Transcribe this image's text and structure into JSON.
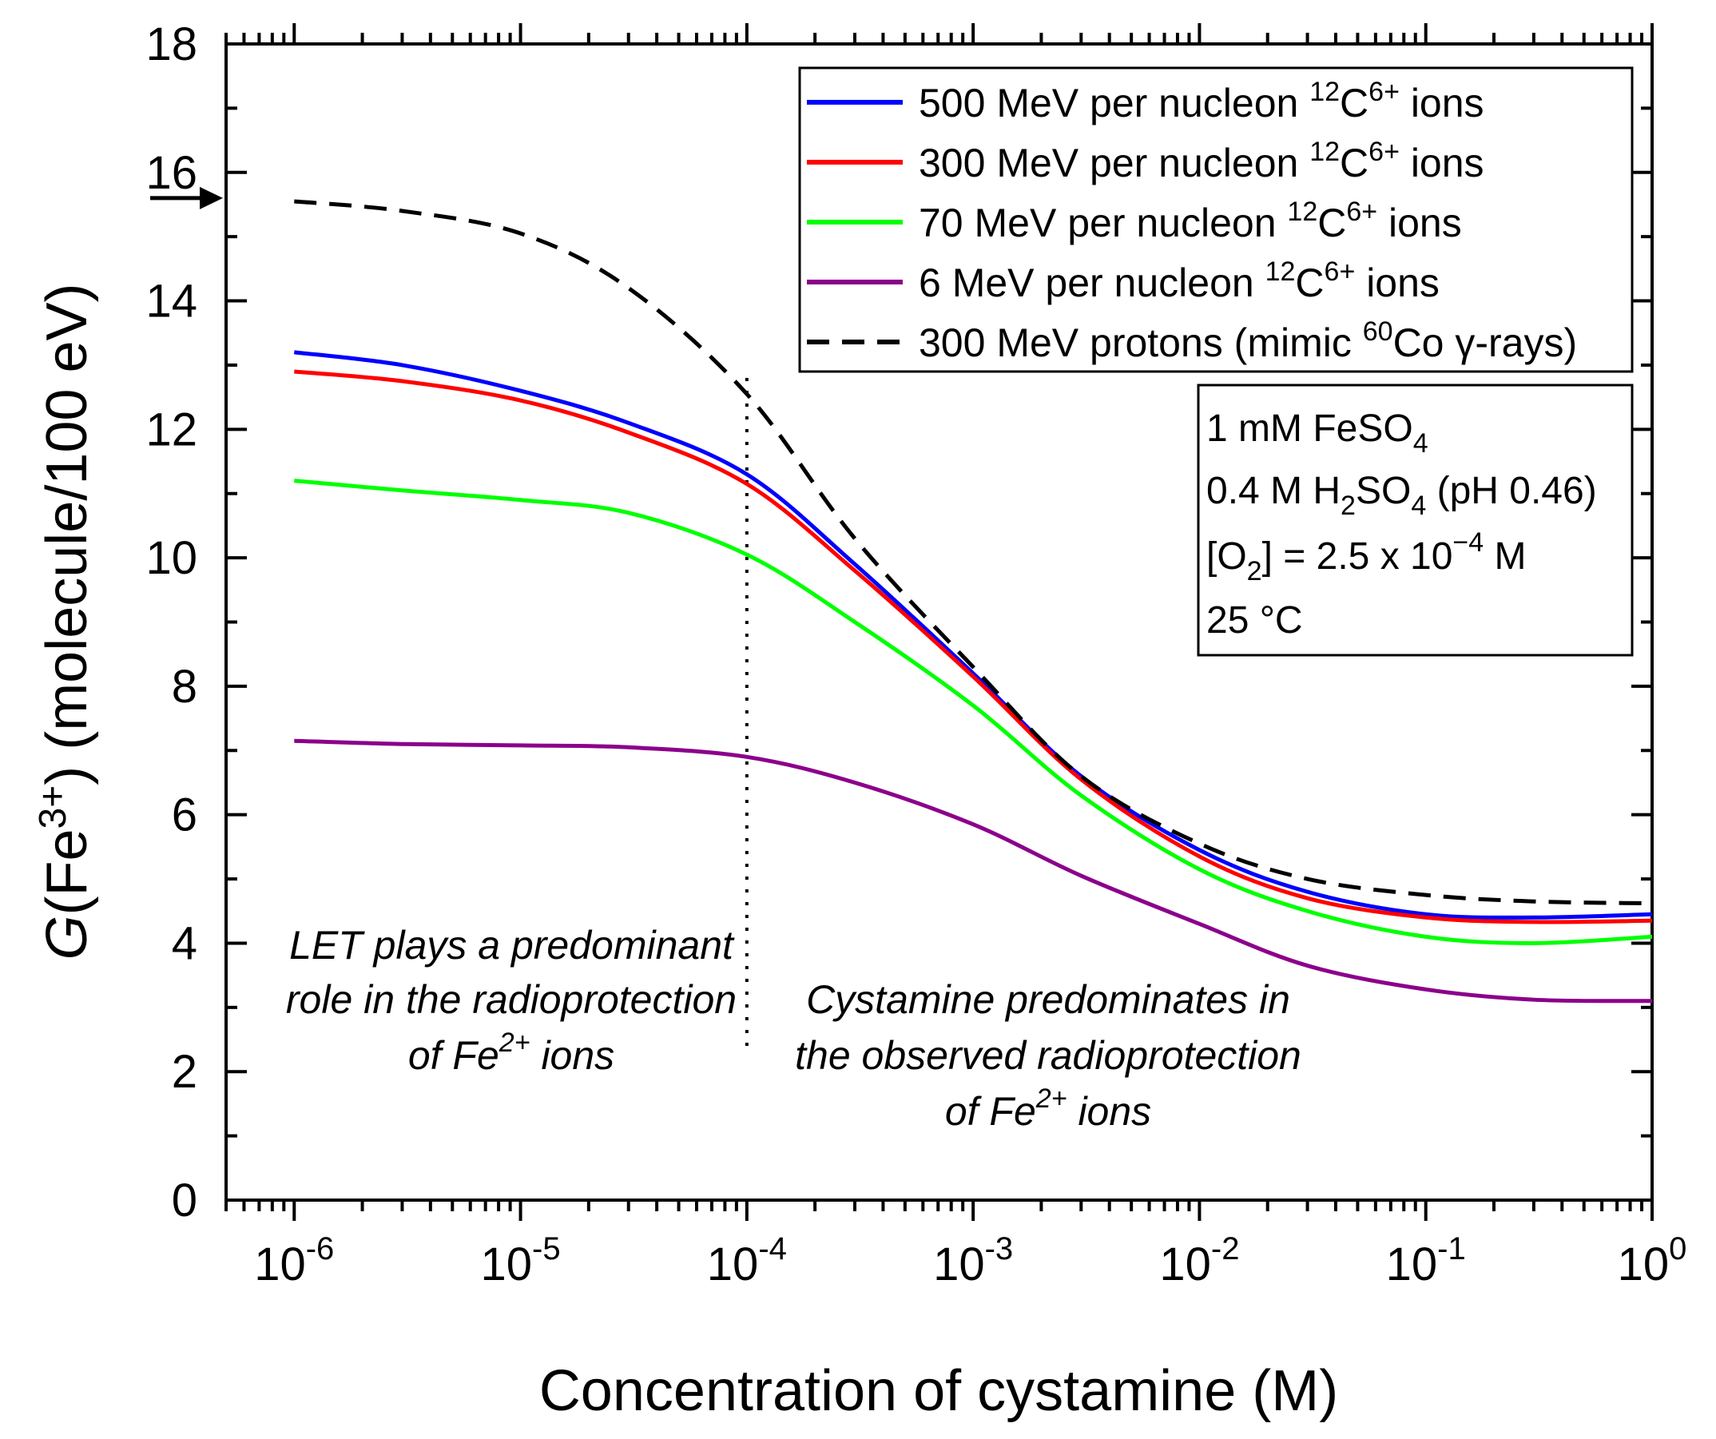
{
  "chart_data": {
    "type": "line",
    "xscale": "log",
    "xlabel": "Concentration of cystamine (M)",
    "ylabel": {
      "prefix": "G",
      "main": "(Fe",
      "sup": "3+",
      "suffix": ") (molecule/100 eV)"
    },
    "xlim": [
      5e-07,
      1
    ],
    "ylim": [
      0,
      18
    ],
    "yticks": [
      "0",
      "2",
      "4",
      "6",
      "8",
      "10",
      "12",
      "14",
      "16",
      "18"
    ],
    "xticks": [
      {
        "base": "10",
        "exp": "-6"
      },
      {
        "base": "10",
        "exp": "-5"
      },
      {
        "base": "10",
        "exp": "-4"
      },
      {
        "base": "10",
        "exp": "-3"
      },
      {
        "base": "10",
        "exp": "-2"
      },
      {
        "base": "10",
        "exp": "-1"
      },
      {
        "base": "10",
        "exp": "0"
      }
    ],
    "x": [
      1e-06,
      3e-06,
      1e-05,
      3e-05,
      0.0001,
      0.0003,
      0.001,
      0.003,
      0.01,
      0.03,
      0.1,
      0.3,
      1
    ],
    "series": [
      {
        "name": "500 MeV per nucleon 12C6+ ions",
        "label": {
          "pre": "500 MeV per nucleon ",
          "sup1": "12",
          "mid": "C",
          "sup2": "6+",
          "post": " ions"
        },
        "color": "#0000ff",
        "style": "solid",
        "values": [
          13.2,
          13.0,
          12.6,
          12.1,
          11.3,
          9.9,
          8.2,
          6.6,
          5.45,
          4.8,
          4.45,
          4.4,
          4.45
        ]
      },
      {
        "name": "300 MeV per nucleon 12C6+ ions",
        "label": {
          "pre": "300 MeV per nucleon ",
          "sup1": "12",
          "mid": "C",
          "sup2": "6+",
          "post": " ions"
        },
        "color": "#ff0000",
        "style": "solid",
        "values": [
          12.9,
          12.75,
          12.45,
          11.95,
          11.15,
          9.8,
          8.15,
          6.55,
          5.35,
          4.7,
          4.4,
          4.33,
          4.35
        ]
      },
      {
        "name": "70 MeV per nucleon 12C6+ ions",
        "label": {
          "pre": "70 MeV per nucleon ",
          "sup1": "12",
          "mid": "C",
          "sup2": "6+",
          "post": " ions"
        },
        "color": "#00ff00",
        "style": "solid",
        "values": [
          11.2,
          11.05,
          10.9,
          10.7,
          10.05,
          9.0,
          7.7,
          6.3,
          5.15,
          4.5,
          4.1,
          4.0,
          4.1
        ]
      },
      {
        "name": "6 MeV per nucleon 12C6+ ions",
        "label": {
          "pre": "6 MeV per nucleon ",
          "sup1": "12",
          "mid": "C",
          "sup2": "6+",
          "post": " ions"
        },
        "color": "#8b008b",
        "style": "solid",
        "values": [
          7.15,
          7.1,
          7.08,
          7.05,
          6.9,
          6.5,
          5.85,
          5.05,
          4.3,
          3.65,
          3.28,
          3.12,
          3.1
        ]
      },
      {
        "name": "300 MeV protons (mimic 60Co γ-rays)",
        "label": {
          "pre": "300 MeV protons (mimic ",
          "sup1": "60",
          "mid": "Co γ-rays)",
          "sup2": "",
          "post": ""
        },
        "color": "#000000",
        "style": "dashed",
        "values": [
          15.55,
          15.4,
          15.05,
          14.2,
          12.55,
          10.3,
          8.3,
          6.6,
          5.55,
          5.0,
          4.75,
          4.65,
          4.62
        ]
      }
    ],
    "arrow_marker": {
      "y": 15.6
    },
    "divider_x": 0.0001,
    "conditions": {
      "line1": {
        "pre": "1 mM FeSO",
        "sub": "4",
        "post": ""
      },
      "line2": {
        "pre": "0.4 M H",
        "sub": "2",
        "mid": "SO",
        "sub2": "4",
        "post": " (pH 0.46)"
      },
      "line3": {
        "pre": "[O",
        "sub": "2",
        "mid": "] = 2.5 x 10",
        "sup": "−4",
        "post": " M"
      },
      "line4": "25 °C"
    },
    "annotations": {
      "left": {
        "line1": "LET plays a predominant",
        "line2": "role in the radioprotection",
        "line3_pre": "of Fe",
        "line3_sup": "2+",
        "line3_post": " ions"
      },
      "right": {
        "line1": "Cystamine predominates in",
        "line2": "the observed radioprotection",
        "line3_pre": "of Fe",
        "line3_sup": "2+",
        "line3_post": " ions"
      }
    },
    "legend_position": "top-right"
  }
}
